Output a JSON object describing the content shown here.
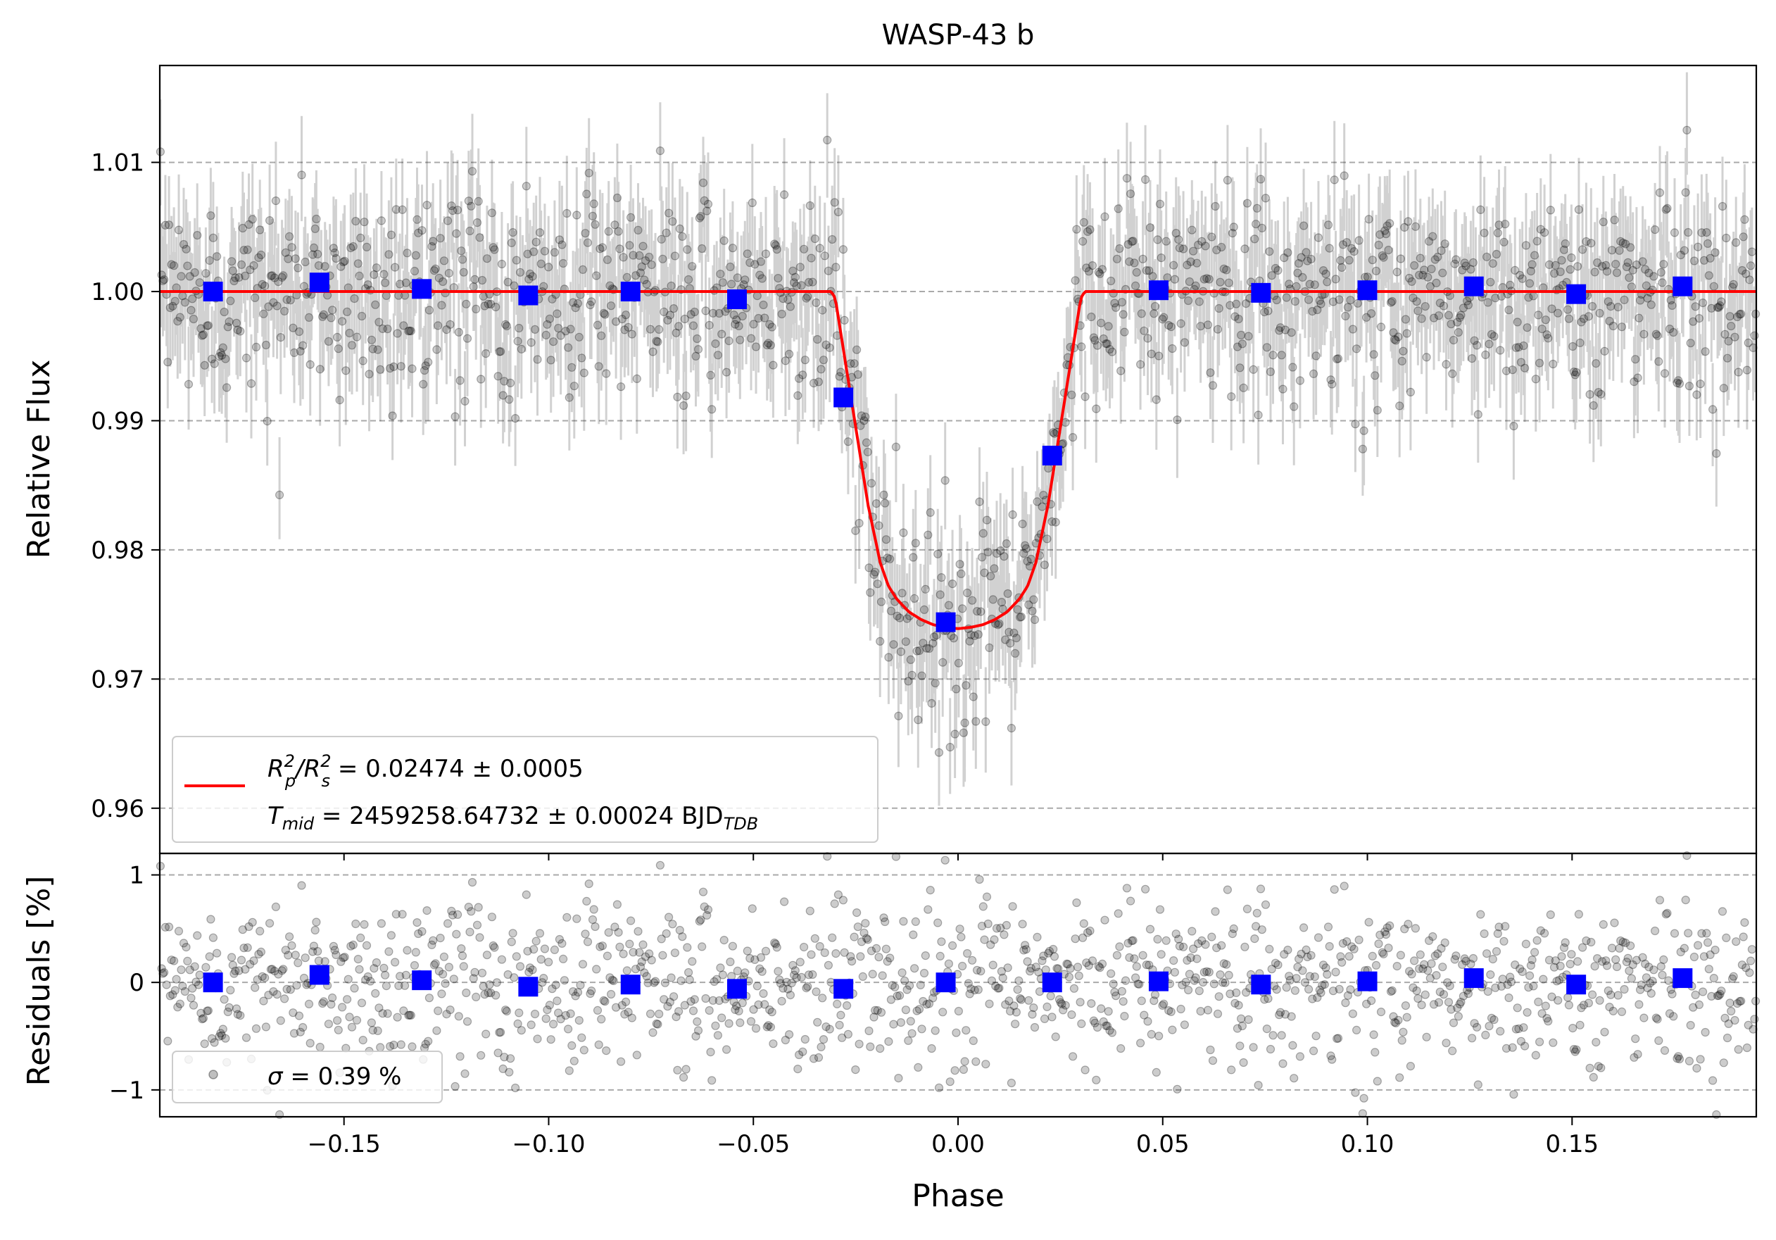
{
  "chart_data": [
    {
      "type": "scatter",
      "panel": "top",
      "title": "WASP-43 b",
      "xlabel": "",
      "ylabel": "Relative Flux",
      "xlim": [
        -0.195,
        0.195
      ],
      "ylim": [
        0.9565,
        1.0175
      ],
      "yticks": [
        0.96,
        0.97,
        0.98,
        0.99,
        1.0,
        1.01
      ],
      "ytick_labels": [
        "0.96",
        "0.97",
        "0.98",
        "0.99",
        "1.00",
        "1.01"
      ],
      "grid": "horizontal dashed",
      "raw_points": {
        "n": 1300,
        "color": "#000000",
        "opacity": 0.22,
        "noise_sigma": 0.0039,
        "errorbar_halfwidth": 0.004,
        "description_of_model": "follows transit model plus scatter"
      },
      "model": {
        "name": "transit model",
        "color": "#ff0000",
        "phase": [
          -0.195,
          -0.031,
          -0.03,
          -0.028,
          -0.025,
          -0.022,
          -0.019,
          -0.017,
          -0.015,
          -0.012,
          -0.009,
          -0.006,
          -0.003,
          0.0,
          0.003,
          0.006,
          0.009,
          0.012,
          0.015,
          0.017,
          0.019,
          0.022,
          0.025,
          0.028,
          0.03,
          0.031,
          0.195
        ],
        "flux": [
          1.0,
          1.0,
          0.9995,
          0.9955,
          0.9895,
          0.9835,
          0.979,
          0.9772,
          0.9762,
          0.9752,
          0.9746,
          0.9742,
          0.974,
          0.9739,
          0.974,
          0.9742,
          0.9746,
          0.9752,
          0.9762,
          0.9772,
          0.979,
          0.9835,
          0.9895,
          0.9955,
          0.9995,
          1.0,
          1.0
        ]
      },
      "binned": {
        "name": "binned",
        "color": "#0000ff",
        "phase": [
          -0.182,
          -0.156,
          -0.131,
          -0.105,
          -0.08,
          -0.054,
          -0.028,
          -0.003,
          0.023,
          0.049,
          0.074,
          0.1,
          0.126,
          0.151,
          0.177
        ],
        "flux": [
          1.0,
          1.0007,
          1.0002,
          0.9997,
          1.0,
          0.9994,
          0.9918,
          0.9744,
          0.9873,
          1.0001,
          0.9999,
          1.0001,
          1.0004,
          0.9998,
          1.0004
        ]
      },
      "legend": {
        "position": "lower-left",
        "line1_prefix": "R",
        "line1_sub1": "p",
        "line1_sup1": "2",
        "line1_slash": "/R",
        "line1_sub2": "s",
        "line1_sup2": "2",
        "line1_rest": " = 0.02474 ± 0.0005",
        "line2_prefix": "T",
        "line2_sub": "mid",
        "line2_rest": " = 2459258.64732 ± 0.00024 BJD",
        "line2_unit_sub": "TDB"
      }
    },
    {
      "type": "scatter",
      "panel": "bottom",
      "xlabel": "Phase",
      "ylabel": "Residuals [%]",
      "xlim": [
        -0.195,
        0.195
      ],
      "ylim": [
        -1.25,
        1.2
      ],
      "yticks": [
        -1,
        0,
        1
      ],
      "ytick_labels": [
        "−1",
        "0",
        "1"
      ],
      "xticks": [
        -0.15,
        -0.1,
        -0.05,
        0.0,
        0.05,
        0.1,
        0.15
      ],
      "xtick_labels": [
        "−0.15",
        "−0.10",
        "−0.05",
        "0.00",
        "0.05",
        "0.10",
        "0.15"
      ],
      "grid": "horizontal dashed",
      "reference_lines": [
        -1,
        0,
        1
      ],
      "raw_points": {
        "n": 1300,
        "color": "#000000",
        "opacity": 0.22,
        "noise_sigma": 0.39
      },
      "binned": {
        "color": "#0000ff",
        "phase": [
          -0.182,
          -0.156,
          -0.131,
          -0.105,
          -0.08,
          -0.054,
          -0.028,
          -0.003,
          0.023,
          0.049,
          0.074,
          0.1,
          0.126,
          0.151,
          0.177
        ],
        "residual": [
          0.0,
          0.07,
          0.02,
          -0.04,
          -0.02,
          -0.06,
          -0.06,
          0.0,
          0.0,
          0.01,
          -0.02,
          0.01,
          0.04,
          -0.02,
          0.04
        ]
      },
      "legend": {
        "position": "lower-left",
        "sigma_symbol": "σ",
        "text": " = 0.39 %"
      }
    }
  ]
}
